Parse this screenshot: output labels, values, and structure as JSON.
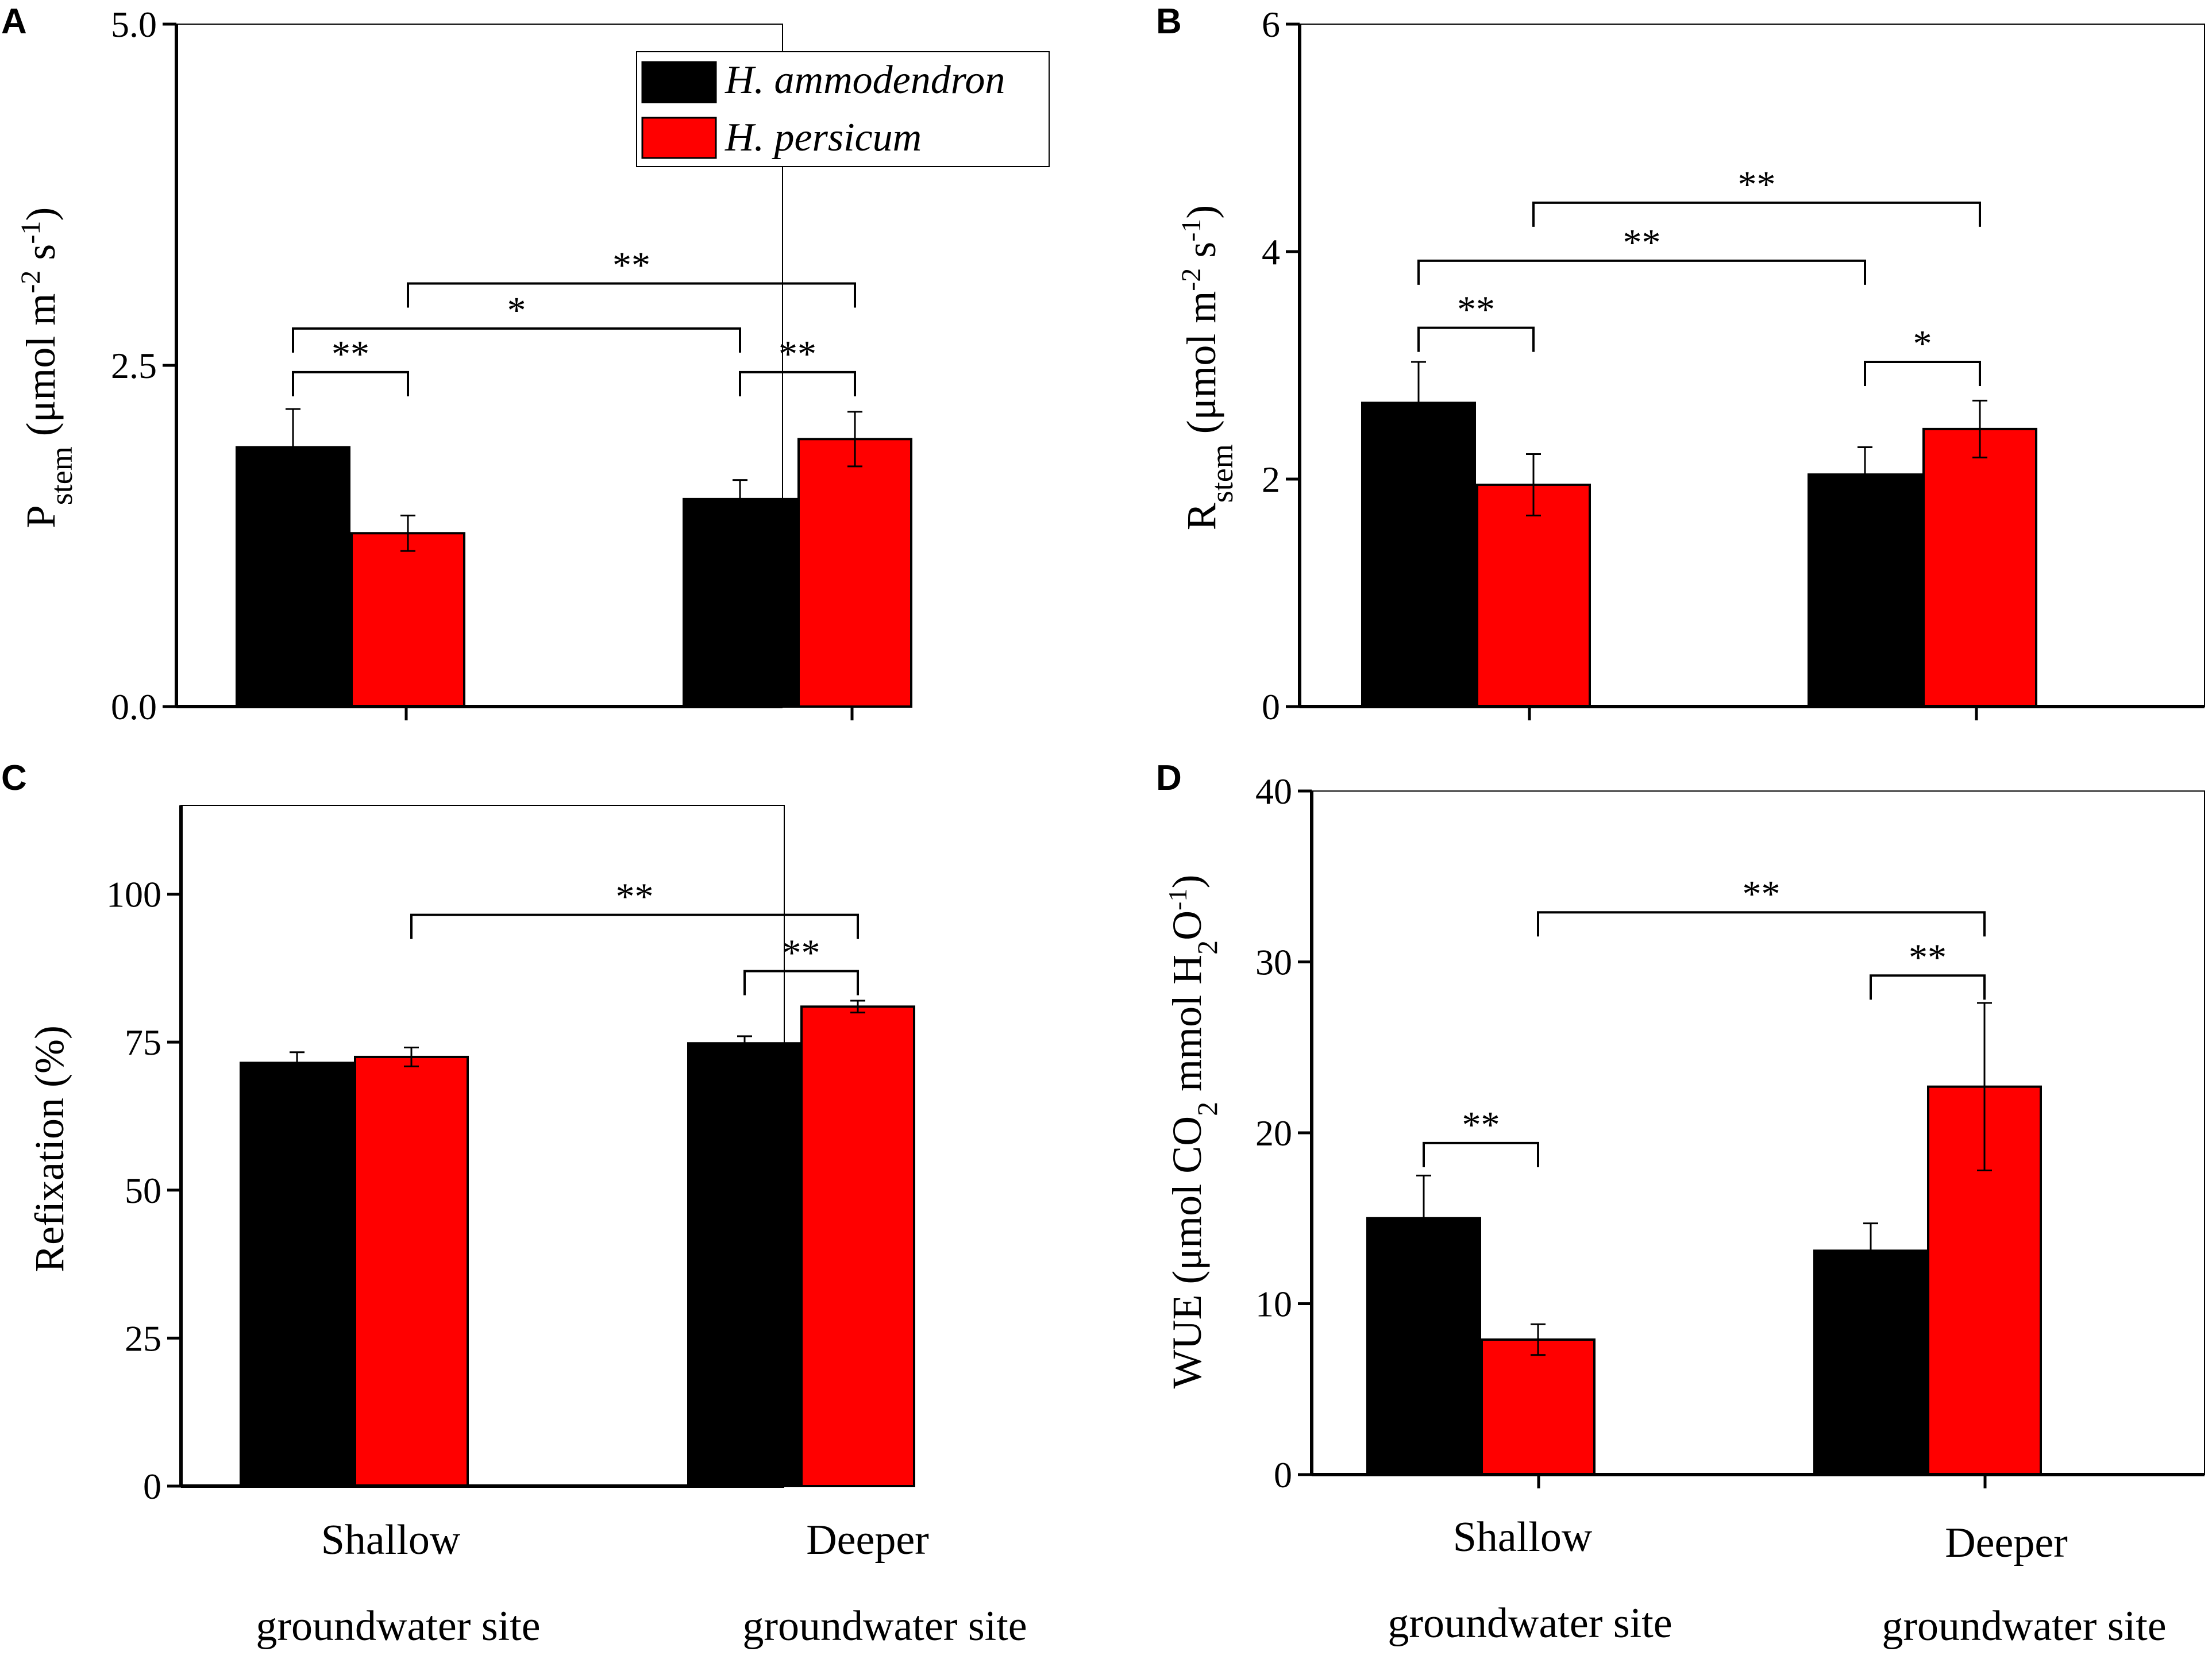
{
  "colors": {
    "h_ammodendron": "#000000",
    "h_persicum": "#ff0000"
  },
  "legend": {
    "series_1": "H. ammodendron",
    "series_2": "H. persicum"
  },
  "categories": {
    "shallow_line1": "Shallow",
    "shallow_line2": "groundwater site",
    "deeper_line1": "Deeper",
    "deeper_line2": "groundwater site"
  },
  "chart_data": [
    {
      "panel": "A",
      "type": "bar",
      "ylabel": {
        "main": "P",
        "sub": "stem",
        "unit_pre": " (μmol m",
        "sup1": "-2",
        "unit_mid": " s",
        "sup2": "-1",
        "unit_post": ")"
      },
      "ylim": [
        0,
        5
      ],
      "yticks": [
        0,
        2.5,
        5
      ],
      "ytick_labels": [
        "0.0",
        "2.5",
        "5.0"
      ],
      "categories": [
        "Shallow groundwater site",
        "Deeper groundwater site"
      ],
      "series": [
        {
          "name": "H. ammodendron",
          "values": [
            1.9,
            1.52
          ],
          "errors": [
            0.28,
            0.14
          ]
        },
        {
          "name": "H. persicum",
          "values": [
            1.27,
            1.96
          ],
          "errors": [
            0.13,
            0.2
          ]
        }
      ],
      "significance": [
        {
          "from": [
            0,
            0
          ],
          "to": [
            0,
            1
          ],
          "y": 2.45,
          "label": "**"
        },
        {
          "from": [
            0,
            0
          ],
          "to": [
            1,
            0
          ],
          "y": 2.77,
          "label": "*"
        },
        {
          "from": [
            1,
            0
          ],
          "to": [
            1,
            1
          ],
          "y": 2.45,
          "label": "**"
        },
        {
          "from": [
            0,
            1
          ],
          "to": [
            1,
            1
          ],
          "y": 3.1,
          "label": "**"
        }
      ]
    },
    {
      "panel": "B",
      "type": "bar",
      "ylabel": {
        "main": "R",
        "sub": "stem",
        "unit_pre": " (μmol m",
        "sup1": "-2",
        "unit_mid": " s",
        "sup2": "-1",
        "unit_post": ")"
      },
      "ylim": [
        0,
        6
      ],
      "yticks": [
        0,
        2,
        4,
        6
      ],
      "ytick_labels": [
        "0",
        "2",
        "4",
        "6"
      ],
      "categories": [
        "Shallow groundwater site",
        "Deeper groundwater site"
      ],
      "series": [
        {
          "name": "H. ammodendron",
          "values": [
            2.67,
            2.04
          ],
          "errors": [
            0.36,
            0.24
          ]
        },
        {
          "name": "H. persicum",
          "values": [
            1.95,
            2.44
          ],
          "errors": [
            0.27,
            0.25
          ]
        }
      ],
      "significance": [
        {
          "from": [
            0,
            0
          ],
          "to": [
            0,
            1
          ],
          "y": 3.33,
          "label": "**"
        },
        {
          "from": [
            1,
            0
          ],
          "to": [
            1,
            1
          ],
          "y": 3.03,
          "label": "*"
        },
        {
          "from": [
            0,
            0
          ],
          "to": [
            1,
            0
          ],
          "y": 3.92,
          "label": "**"
        },
        {
          "from": [
            0,
            1
          ],
          "to": [
            1,
            1
          ],
          "y": 4.43,
          "label": "**"
        }
      ]
    },
    {
      "panel": "C",
      "type": "bar",
      "ylabel": {
        "main": "Refixation (%)"
      },
      "ylim": [
        0,
        115
      ],
      "yticks": [
        0,
        25,
        50,
        75,
        100
      ],
      "ytick_labels": [
        "0",
        "25",
        "50",
        "75",
        "100"
      ],
      "categories": [
        "Shallow groundwater site",
        "Deeper groundwater site"
      ],
      "series": [
        {
          "name": "H. ammodendron",
          "values": [
            71.5,
            74.8
          ],
          "errors": [
            1.8,
            1.2
          ]
        },
        {
          "name": "H. persicum",
          "values": [
            72.5,
            81.0
          ],
          "errors": [
            1.6,
            1.0
          ]
        }
      ],
      "significance": [
        {
          "from": [
            1,
            0
          ],
          "to": [
            1,
            1
          ],
          "y": 87,
          "label": "**"
        },
        {
          "from": [
            0,
            1
          ],
          "to": [
            1,
            1
          ],
          "y": 96.5,
          "label": "**"
        }
      ]
    },
    {
      "panel": "D",
      "type": "bar",
      "ylabel": {
        "main": "WUE (μmol CO",
        "sub1": "2",
        "mid": " mmol H",
        "sub2": "2",
        "tail": "O",
        "sup": "-1",
        "end": ")"
      },
      "ylim": [
        0,
        40
      ],
      "yticks": [
        0,
        10,
        20,
        30,
        40
      ],
      "ytick_labels": [
        "0",
        "10",
        "20",
        "30",
        "40"
      ],
      "categories": [
        "Shallow groundwater site",
        "Deeper groundwater site"
      ],
      "series": [
        {
          "name": "H. ammodendron",
          "values": [
            15.0,
            13.1
          ],
          "errors": [
            2.5,
            1.6
          ]
        },
        {
          "name": "H. persicum",
          "values": [
            7.9,
            22.7
          ],
          "errors": [
            0.9,
            4.9
          ]
        }
      ],
      "significance": [
        {
          "from": [
            0,
            0
          ],
          "to": [
            0,
            1
          ],
          "y": 19.4,
          "label": "**"
        },
        {
          "from": [
            1,
            0
          ],
          "to": [
            1,
            1
          ],
          "y": 29.2,
          "label": "**"
        },
        {
          "from": [
            0,
            1
          ],
          "to": [
            1,
            1
          ],
          "y": 32.9,
          "label": "**"
        }
      ]
    }
  ]
}
